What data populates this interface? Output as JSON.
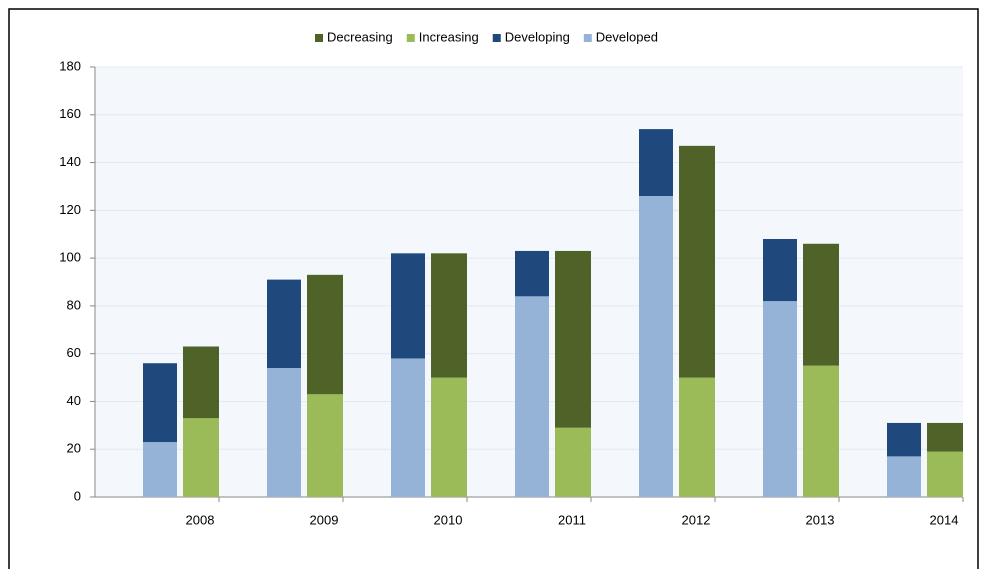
{
  "chart_data": {
    "type": "bar",
    "categories": [
      "2008",
      "2009",
      "2010",
      "2011",
      "2012",
      "2013",
      "2014"
    ],
    "series": [
      {
        "name": "Decreasing",
        "color": "#4f6228",
        "values": [
          30,
          50,
          52,
          74,
          97,
          51,
          12
        ]
      },
      {
        "name": "Increasing",
        "color": "#9bbb59",
        "values": [
          33,
          43,
          50,
          29,
          50,
          55,
          19
        ]
      },
      {
        "name": "Developing",
        "color": "#1f497d",
        "values": [
          33,
          37,
          44,
          19,
          28,
          26,
          14
        ]
      },
      {
        "name": "Developed",
        "color": "#95b3d7",
        "values": [
          23,
          54,
          58,
          84,
          126,
          82,
          17
        ]
      }
    ],
    "ylim": [
      0,
      180
    ],
    "yticks": [
      0,
      20,
      40,
      60,
      80,
      100,
      120,
      140,
      160,
      180
    ],
    "grid": true,
    "legend": "top"
  }
}
